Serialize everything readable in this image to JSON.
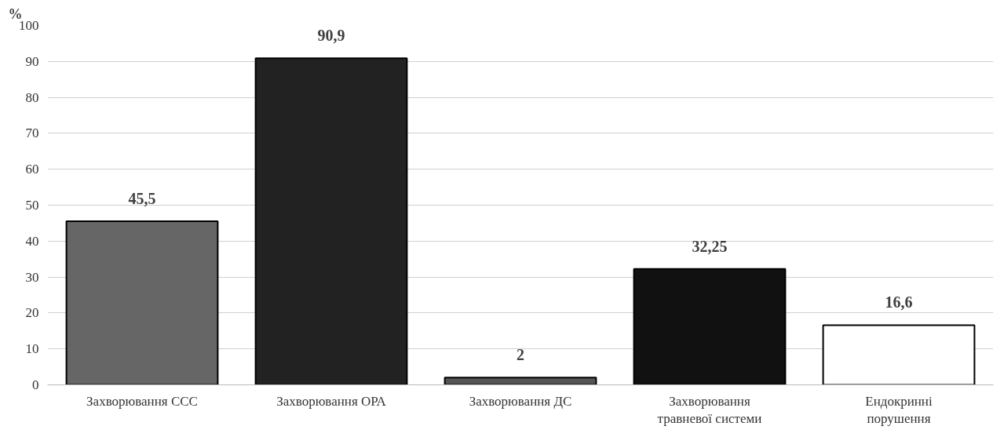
{
  "chart_data": {
    "type": "bar",
    "ylabel": "%",
    "categories": [
      "Захворювання ССС",
      "Захворювання ОРА",
      "Захворювання ДС",
      "Захворювання травневої системи",
      "Ендокринні порушення"
    ],
    "values": [
      45.5,
      90.9,
      2,
      32.25,
      16.6
    ],
    "colors": [
      "#666666",
      "#222222",
      "#555555",
      "#111111",
      "#ffffff"
    ],
    "ylim": [
      0,
      100
    ],
    "yticks": [
      0,
      10,
      20,
      30,
      40,
      50,
      60,
      70,
      80,
      90,
      100
    ],
    "value_labels": [
      "45,5",
      "90,9",
      "2",
      "32,25",
      "16,6"
    ],
    "grid": "y"
  }
}
